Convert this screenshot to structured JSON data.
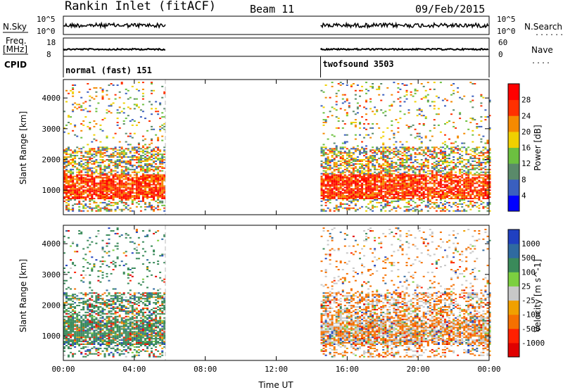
{
  "header": {
    "station": "Rankin Inlet (fitACF)",
    "beam": "Beam 11",
    "date": "09/Feb/2015"
  },
  "strip_labels": {
    "nsky": "N.Sky",
    "freq_top": "Freq.",
    "freq_unit": "[MHz]",
    "cpid": "CPID",
    "nsearch": "N.Search",
    "nave": "Nave",
    "nsky_ticks": [
      "10^5",
      "10^0"
    ],
    "nsearch_ticks": [
      "10^5",
      "10^0"
    ],
    "freq_ticks": [
      "18",
      "8"
    ],
    "nave_ticks": [
      "60",
      "0"
    ]
  },
  "modes": [
    {
      "label": "normal (fast) 151",
      "start_hour": 0.0
    },
    {
      "label": "twofsound 3503",
      "start_hour": 14.5
    }
  ],
  "chart_data": [
    {
      "type": "heatmap",
      "title": "",
      "xlabel": "Time UT",
      "ylabel": "Slant Range [km]",
      "x_ticks": [
        "00:00",
        "04:00",
        "08:00",
        "12:00",
        "16:00",
        "20:00",
        "00:00"
      ],
      "x_range_hours": [
        0,
        24
      ],
      "y_ticks": [
        "1000",
        "2000",
        "3000",
        "4000"
      ],
      "ylim": [
        200,
        4600
      ],
      "colorbar": {
        "label": "Power [dB]",
        "tick_labels": [
          "4",
          "8",
          "12",
          "16",
          "20",
          "24",
          "28"
        ],
        "range": [
          0,
          32
        ],
        "colors": [
          "#0000ff",
          "#3a5fbf",
          "#5a8a6a",
          "#6cc040",
          "#f0d000",
          "#f58a00",
          "#ff3000",
          "#ff0000"
        ]
      },
      "data_gaps_hours": [
        [
          5.75,
          14.5
        ]
      ],
      "observed_intervals_hours": [
        [
          0.0,
          5.75
        ],
        [
          14.5,
          24.0
        ]
      ]
    },
    {
      "type": "heatmap",
      "title": "",
      "xlabel": "Time UT",
      "ylabel": "Slant Range [km]",
      "x_ticks": [
        "00:00",
        "04:00",
        "08:00",
        "12:00",
        "16:00",
        "20:00",
        "00:00"
      ],
      "x_range_hours": [
        0,
        24
      ],
      "y_ticks": [
        "1000",
        "2000",
        "3000",
        "4000"
      ],
      "ylim": [
        200,
        4600
      ],
      "colorbar": {
        "label": "Velocity [m s^-1]",
        "tick_labels": [
          "1000",
          "500",
          "100",
          "25",
          "-25",
          "-100",
          "-500",
          "-1000"
        ],
        "range": [
          -1000,
          1000
        ],
        "colors": [
          "#2040c0",
          "#2f6aa0",
          "#3a8a5a",
          "#7ccf40",
          "#c8c8c8",
          "#f0a000",
          "#f57000",
          "#ff2000",
          "#e00000"
        ]
      },
      "ground_scatter_color": "#c8c8c8",
      "data_gaps_hours": [
        [
          5.75,
          14.5
        ]
      ],
      "observed_intervals_hours": [
        [
          0.0,
          5.75
        ],
        [
          14.5,
          24.0
        ]
      ]
    }
  ]
}
